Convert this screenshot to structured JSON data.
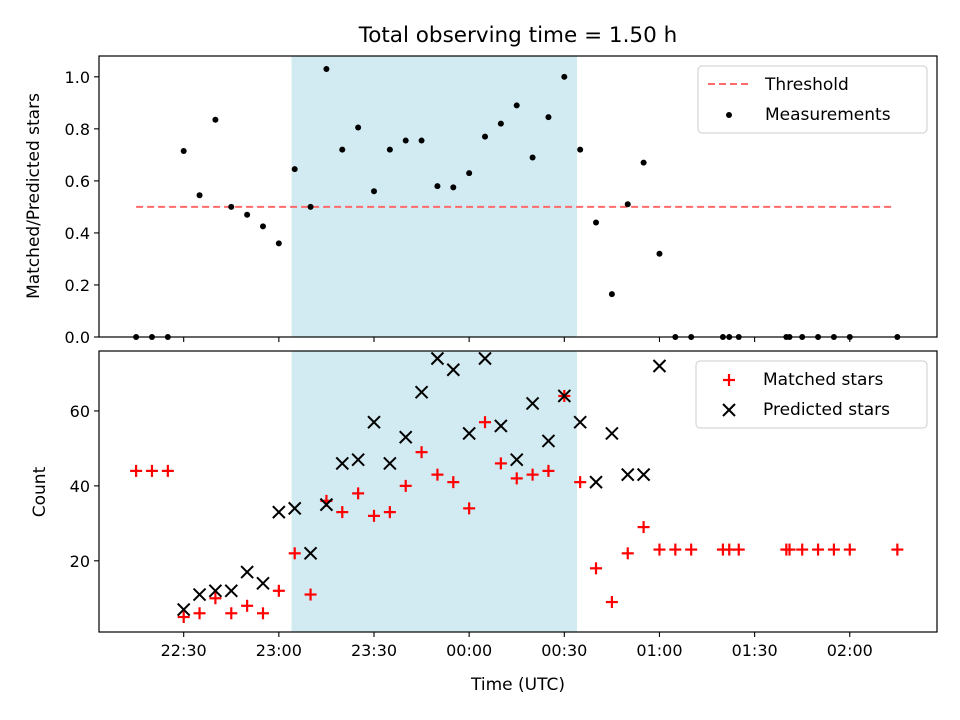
{
  "chart_data": {
    "title": "Total observing time = 1.50 h",
    "xlabel": "Time (UTC)",
    "x_tick_labels": [
      "22:30",
      "23:00",
      "23:30",
      "00:00",
      "00:30",
      "01:00",
      "01:30",
      "02:00"
    ],
    "highlight_band": {
      "x_start": "23:04",
      "x_end": "00:34",
      "color": "#add8e6"
    },
    "panels": [
      {
        "type": "scatter",
        "ylabel": "Matched/Predicted stars",
        "ylim": [
          0,
          1.08
        ],
        "y_tick_labels": [
          "0.0",
          "0.2",
          "0.4",
          "0.6",
          "0.8",
          "1.0"
        ],
        "legend_position": "top-right",
        "threshold": {
          "name": "Threshold",
          "value": 0.5,
          "x_start": "22:15",
          "x_end": "02:14",
          "color": "#ff6b6b"
        },
        "series": [
          {
            "name": "Measurements",
            "color": "#000000",
            "points": [
              [
                "22:15",
                0.0
              ],
              [
                "22:20",
                0.0
              ],
              [
                "22:25",
                0.0
              ],
              [
                "22:30",
                0.715
              ],
              [
                "22:35",
                0.545
              ],
              [
                "22:40",
                0.835
              ],
              [
                "22:45",
                0.5
              ],
              [
                "22:50",
                0.47
              ],
              [
                "22:55",
                0.425
              ],
              [
                "23:00",
                0.36
              ],
              [
                "23:05",
                0.645
              ],
              [
                "23:10",
                0.5
              ],
              [
                "23:15",
                1.03
              ],
              [
                "23:20",
                0.72
              ],
              [
                "23:25",
                0.805
              ],
              [
                "23:30",
                0.56
              ],
              [
                "23:35",
                0.72
              ],
              [
                "23:40",
                0.755
              ],
              [
                "23:45",
                0.755
              ],
              [
                "23:50",
                0.58
              ],
              [
                "23:55",
                0.575
              ],
              [
                "00:00",
                0.63
              ],
              [
                "00:05",
                0.77
              ],
              [
                "00:10",
                0.82
              ],
              [
                "00:15",
                0.89
              ],
              [
                "00:20",
                0.69
              ],
              [
                "00:25",
                0.845
              ],
              [
                "00:30",
                1.0
              ],
              [
                "00:35",
                0.72
              ],
              [
                "00:40",
                0.44
              ],
              [
                "00:45",
                0.165
              ],
              [
                "00:50",
                0.51
              ],
              [
                "00:55",
                0.67
              ],
              [
                "01:00",
                0.32
              ],
              [
                "01:05",
                0.0
              ],
              [
                "01:10",
                0.0
              ],
              [
                "01:20",
                0.0
              ],
              [
                "01:22",
                0.0
              ],
              [
                "01:25",
                0.0
              ],
              [
                "01:40",
                0.0
              ],
              [
                "01:41",
                0.0
              ],
              [
                "01:45",
                0.0
              ],
              [
                "01:50",
                0.0
              ],
              [
                "01:55",
                0.0
              ],
              [
                "02:00",
                0.0
              ],
              [
                "02:15",
                0.0
              ]
            ]
          }
        ]
      },
      {
        "type": "scatter",
        "ylabel": "Count",
        "ylim": [
          1,
          76
        ],
        "y_tick_labels": [
          "20",
          "40",
          "60"
        ],
        "legend_position": "top-right",
        "series": [
          {
            "name": "Matched stars",
            "marker": "plus",
            "color": "#ff0000",
            "points": [
              [
                "22:15",
                44
              ],
              [
                "22:20",
                44
              ],
              [
                "22:25",
                44
              ],
              [
                "22:30",
                5
              ],
              [
                "22:35",
                6
              ],
              [
                "22:40",
                10
              ],
              [
                "22:45",
                6
              ],
              [
                "22:50",
                8
              ],
              [
                "22:55",
                6
              ],
              [
                "23:00",
                12
              ],
              [
                "23:05",
                22
              ],
              [
                "23:10",
                11
              ],
              [
                "23:15",
                36
              ],
              [
                "23:20",
                33
              ],
              [
                "23:25",
                38
              ],
              [
                "23:30",
                32
              ],
              [
                "23:35",
                33
              ],
              [
                "23:40",
                40
              ],
              [
                "23:45",
                49
              ],
              [
                "23:50",
                43
              ],
              [
                "23:55",
                41
              ],
              [
                "00:00",
                34
              ],
              [
                "00:05",
                57
              ],
              [
                "00:10",
                46
              ],
              [
                "00:15",
                42
              ],
              [
                "00:20",
                43
              ],
              [
                "00:25",
                44
              ],
              [
                "00:30",
                64
              ],
              [
                "00:35",
                41
              ],
              [
                "00:40",
                18
              ],
              [
                "00:45",
                9
              ],
              [
                "00:50",
                22
              ],
              [
                "00:55",
                29
              ],
              [
                "01:00",
                23
              ],
              [
                "01:05",
                23
              ],
              [
                "01:10",
                23
              ],
              [
                "01:20",
                23
              ],
              [
                "01:22",
                23
              ],
              [
                "01:25",
                23
              ],
              [
                "01:40",
                23
              ],
              [
                "01:41",
                23
              ],
              [
                "01:45",
                23
              ],
              [
                "01:50",
                23
              ],
              [
                "01:55",
                23
              ],
              [
                "02:00",
                23
              ],
              [
                "02:15",
                23
              ]
            ]
          },
          {
            "name": "Predicted stars",
            "marker": "x",
            "color": "#000000",
            "points": [
              [
                "22:30",
                7
              ],
              [
                "22:35",
                11
              ],
              [
                "22:40",
                12
              ],
              [
                "22:45",
                12
              ],
              [
                "22:50",
                17
              ],
              [
                "22:55",
                14
              ],
              [
                "23:00",
                33
              ],
              [
                "23:05",
                34
              ],
              [
                "23:10",
                22
              ],
              [
                "23:15",
                35
              ],
              [
                "23:20",
                46
              ],
              [
                "23:25",
                47
              ],
              [
                "23:30",
                57
              ],
              [
                "23:35",
                46
              ],
              [
                "23:40",
                53
              ],
              [
                "23:45",
                65
              ],
              [
                "23:50",
                74
              ],
              [
                "23:55",
                71
              ],
              [
                "00:00",
                54
              ],
              [
                "00:05",
                74
              ],
              [
                "00:10",
                56
              ],
              [
                "00:15",
                47
              ],
              [
                "00:20",
                62
              ],
              [
                "00:25",
                52
              ],
              [
                "00:30",
                64
              ],
              [
                "00:35",
                57
              ],
              [
                "00:40",
                41
              ],
              [
                "00:45",
                54
              ],
              [
                "00:50",
                43
              ],
              [
                "00:55",
                43
              ],
              [
                "01:00",
                72
              ]
            ]
          }
        ]
      }
    ]
  }
}
